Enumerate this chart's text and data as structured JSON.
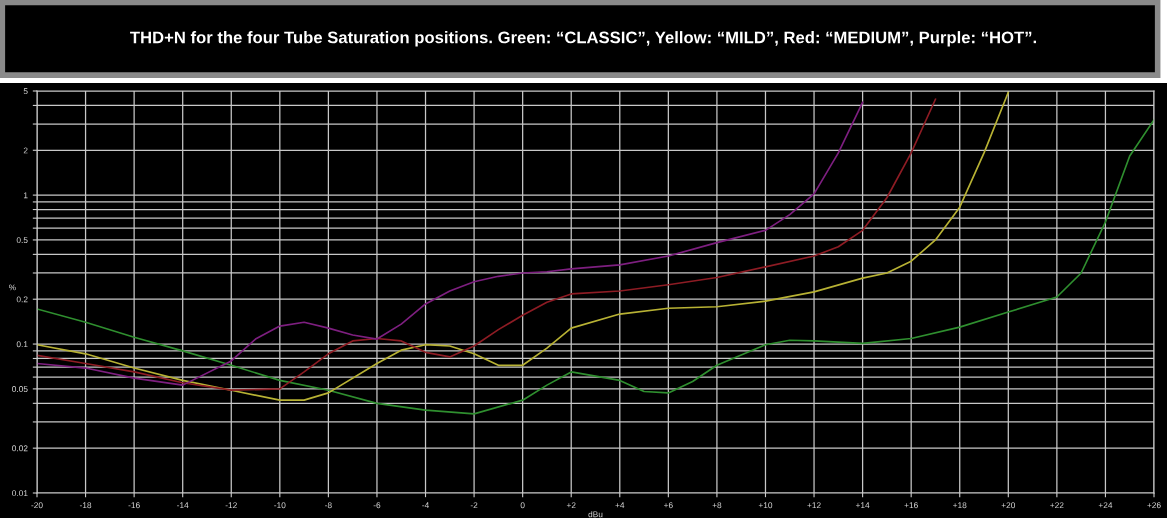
{
  "chart_data": {
    "type": "line",
    "title": "THD+N for the four Tube Saturation positions. Green: “CLASSIC”, Yellow: “MILD”, Red: “MEDIUM”, Purple: “HOT”.",
    "xlabel": "dBu",
    "ylabel": "%",
    "log": "y",
    "grid": true,
    "legend": false,
    "marker": "none",
    "line_style": "solid",
    "xlim": [
      -20,
      26
    ],
    "ylim": [
      0.01,
      5
    ],
    "xticks": [
      -20,
      -18,
      -16,
      -14,
      -12,
      -10,
      -8,
      -6,
      -4,
      -2,
      0,
      {
        "value": 2,
        "label": "+2"
      },
      {
        "value": 4,
        "label": "+4"
      },
      {
        "value": 6,
        "label": "+6"
      },
      {
        "value": 8,
        "label": "+8"
      },
      {
        "value": 10,
        "label": "+10"
      },
      {
        "value": 12,
        "label": "+12"
      },
      {
        "value": 14,
        "label": "+14"
      },
      {
        "value": 16,
        "label": "+16"
      },
      {
        "value": 18,
        "label": "+18"
      },
      {
        "value": 20,
        "label": "+20"
      },
      {
        "value": 22,
        "label": "+22"
      },
      {
        "value": 24,
        "label": "+24"
      },
      {
        "value": 26,
        "label": "+26"
      }
    ],
    "yticks": [
      0.01,
      0.02,
      {
        "value": 0.03,
        "label": null
      },
      {
        "value": 0.04,
        "label": null
      },
      0.05,
      {
        "value": 0.06,
        "label": null
      },
      {
        "value": 0.07,
        "label": null
      },
      {
        "value": 0.08,
        "label": null
      },
      {
        "value": 0.09,
        "label": null
      },
      0.1,
      0.2,
      {
        "value": 0.3,
        "label": null
      },
      {
        "value": 0.4,
        "label": null
      },
      0.5,
      {
        "value": 0.6,
        "label": null
      },
      {
        "value": 0.7,
        "label": null
      },
      {
        "value": 0.8,
        "label": null
      },
      {
        "value": 0.9,
        "label": null
      },
      1,
      2,
      {
        "value": 3,
        "label": null
      },
      {
        "value": 4,
        "label": null
      },
      5
    ],
    "series": [
      {
        "color": "#2f8f2f",
        "x": [
          -20,
          -18,
          -16,
          -14,
          -12,
          -10,
          -8,
          -6,
          -4,
          -2,
          0,
          1,
          2,
          4,
          5,
          6,
          7,
          8,
          10,
          11,
          12,
          14,
          16,
          18,
          20,
          22,
          23,
          24,
          25,
          26
        ],
        "values": [
          0.172,
          0.14,
          0.111,
          0.09,
          0.072,
          0.057,
          0.049,
          0.04,
          0.036,
          0.034,
          0.042,
          0.053,
          0.065,
          0.057,
          0.048,
          0.047,
          0.056,
          0.072,
          0.099,
          0.106,
          0.105,
          0.101,
          0.109,
          0.13,
          0.164,
          0.207,
          0.3,
          0.66,
          1.83,
          3.2
        ]
      },
      {
        "color": "#b8b234",
        "x": [
          -20,
          -18,
          -16,
          -14,
          -12,
          -10,
          -9,
          -8,
          -6,
          -5,
          -4,
          -3,
          -2,
          -1,
          0,
          1,
          2,
          4,
          6,
          8,
          10,
          12,
          14,
          15,
          16,
          17,
          18,
          19,
          20
        ],
        "values": [
          0.099,
          0.086,
          0.069,
          0.057,
          0.049,
          0.042,
          0.042,
          0.047,
          0.074,
          0.091,
          0.099,
          0.097,
          0.086,
          0.072,
          0.072,
          0.094,
          0.128,
          0.159,
          0.174,
          0.178,
          0.194,
          0.224,
          0.277,
          0.3,
          0.36,
          0.5,
          0.83,
          1.92,
          4.9
        ]
      },
      {
        "color": "#8e1c24",
        "x": [
          -20,
          -18,
          -16,
          -14,
          -12,
          -10,
          -9,
          -8,
          -7,
          -6,
          -5,
          -4,
          -3,
          -2,
          -1,
          0,
          1,
          2,
          4,
          6,
          8,
          10,
          12,
          13,
          14,
          15,
          16,
          17
        ],
        "values": [
          0.084,
          0.074,
          0.065,
          0.055,
          0.049,
          0.05,
          0.065,
          0.086,
          0.105,
          0.109,
          0.105,
          0.088,
          0.082,
          0.097,
          0.125,
          0.156,
          0.191,
          0.217,
          0.227,
          0.25,
          0.28,
          0.33,
          0.39,
          0.45,
          0.58,
          0.96,
          1.92,
          4.4
        ]
      },
      {
        "color": "#7e1f80",
        "x": [
          -20,
          -18,
          -16,
          -14,
          -12,
          -11,
          -10,
          -9,
          -8,
          -7,
          -6,
          -5,
          -4,
          -3,
          -2,
          -1,
          0,
          1,
          2,
          4,
          6,
          8,
          10,
          11,
          12,
          13,
          14
        ],
        "values": [
          0.074,
          0.069,
          0.059,
          0.053,
          0.077,
          0.108,
          0.132,
          0.14,
          0.128,
          0.115,
          0.108,
          0.136,
          0.186,
          0.227,
          0.262,
          0.285,
          0.3,
          0.306,
          0.32,
          0.34,
          0.39,
          0.48,
          0.58,
          0.74,
          1.02,
          1.92,
          4.2
        ]
      }
    ]
  }
}
